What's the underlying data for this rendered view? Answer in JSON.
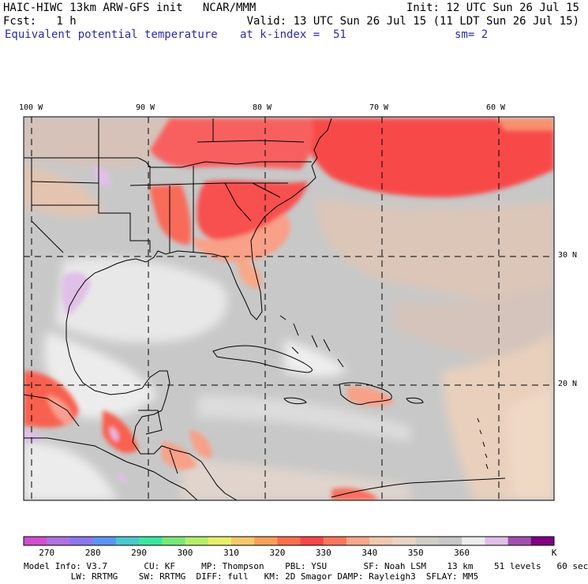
{
  "header": {
    "title_line1": "HAIC-HIWC 13km ARW-GFS init   NCAR/MMM",
    "init": "Init: 12 UTC Sun 26 Jul 15",
    "fcst": "Fcst:   1 h",
    "valid": "Valid: 13 UTC Sun 26 Jul 15 (11 LDT Sun 26 Jul 15)",
    "field": "Equivalent potential temperature",
    "level": "at k-index =  51",
    "smooth": "sm= 2"
  },
  "map": {
    "lon_labels": [
      "100 W",
      "90 W",
      "80 W",
      "70 W",
      "60 W"
    ],
    "lat_labels": [
      "30 N",
      "20 N"
    ]
  },
  "colorbar": {
    "colors": [
      "#d050d0",
      "#b070e0",
      "#8c78ec",
      "#5c96f0",
      "#4cc8cc",
      "#3ce6a0",
      "#78e878",
      "#b4ee6c",
      "#e8ee6c",
      "#f4c86c",
      "#f8a05c",
      "#f87050",
      "#f84848",
      "#f8785c",
      "#f8a88c",
      "#f0c8b0",
      "#e8d4c4",
      "#d0ccc8",
      "#c8c8c8",
      "#ececec",
      "#e0c0e8",
      "#a050b0",
      "#800080"
    ],
    "labels": [
      "270",
      "280",
      "290",
      "300",
      "310",
      "320",
      "330",
      "340",
      "350",
      "360"
    ],
    "unit": "K"
  },
  "footer": {
    "line1": "Model Info: V3.7       CU: KF     MP: Thompson    PBL: YSU       SF: Noah LSM    13 km    51 levels   60 sec",
    "line2": "         LW: RRTMG    SW: RRTMG  DIFF: full   KM: 2D Smagor DAMP: Rayleigh3  SFLAY: MM5"
  }
}
